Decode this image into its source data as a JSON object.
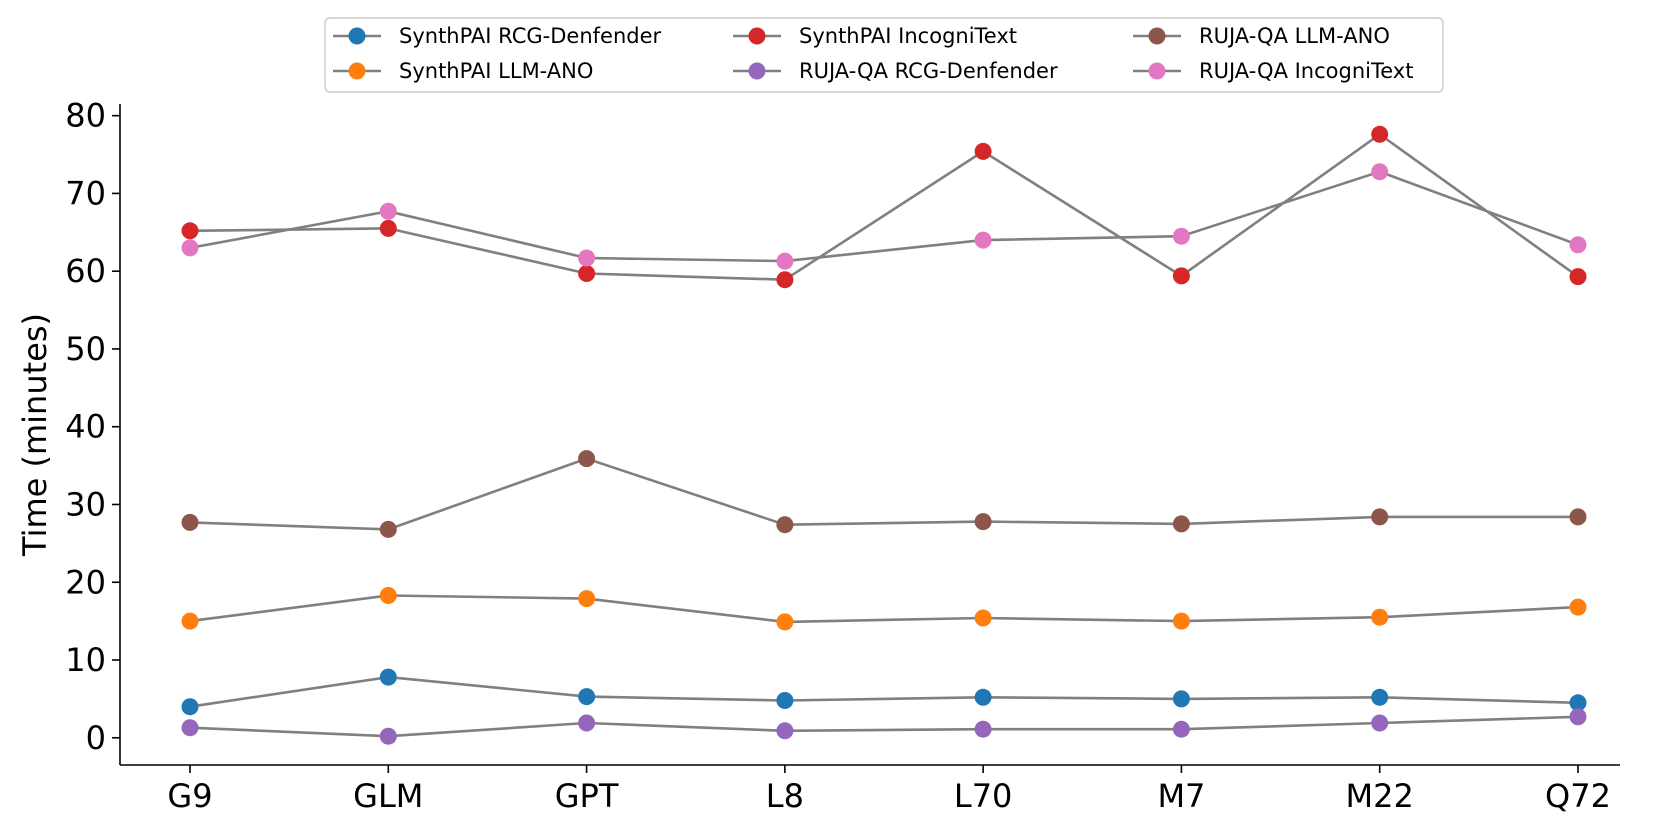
{
  "chart_data": {
    "type": "line",
    "title": "",
    "xlabel": "",
    "ylabel": "Time (minutes)",
    "ylim": [
      -3.5,
      81.5
    ],
    "yticks": [
      0,
      10,
      20,
      30,
      40,
      50,
      60,
      70,
      80
    ],
    "categories": [
      "G9",
      "GLM",
      "GPT",
      "L8",
      "L70",
      "M7",
      "M22",
      "Q72"
    ],
    "line_color": "#808080",
    "legend_position": "top-center",
    "legend_columns": 3,
    "series": [
      {
        "name": "SynthPAI RCG-Denfender",
        "color": "#1f77b4",
        "values": [
          4.0,
          7.8,
          5.3,
          4.8,
          5.2,
          5.0,
          5.2,
          4.5
        ]
      },
      {
        "name": "SynthPAI LLM-ANO",
        "color": "#ff7f0e",
        "values": [
          15.0,
          18.3,
          17.9,
          14.9,
          15.4,
          15.0,
          15.5,
          16.8
        ]
      },
      {
        "name": "SynthPAI IncogniText",
        "color": "#d62728",
        "values": [
          65.2,
          65.5,
          59.7,
          58.9,
          75.4,
          59.4,
          77.6,
          59.3
        ]
      },
      {
        "name": "RUJA-QA RCG-Denfender",
        "color": "#9467bd",
        "values": [
          1.3,
          0.2,
          1.9,
          0.9,
          1.1,
          1.1,
          1.9,
          2.7
        ]
      },
      {
        "name": "RUJA-QA LLM-ANO",
        "color": "#8c564b",
        "values": [
          27.7,
          26.8,
          35.9,
          27.4,
          27.8,
          27.5,
          28.4,
          28.4
        ]
      },
      {
        "name": "RUJA-QA IncogniText",
        "color": "#e377c2",
        "values": [
          63.0,
          67.7,
          61.7,
          61.3,
          64.0,
          64.5,
          72.8,
          63.4
        ]
      }
    ]
  }
}
